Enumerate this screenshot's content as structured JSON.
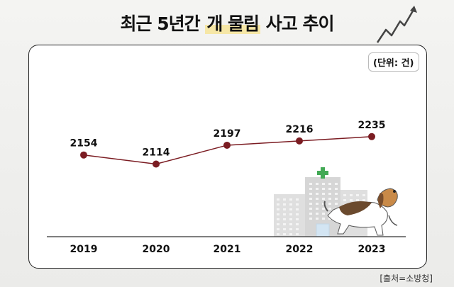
{
  "title_main": "최근 5년간",
  "title_highlight": "개 물림",
  "title_tail": "사고 추이",
  "unit_label": "(단위: 건)",
  "source_label": "[출처=소방청]",
  "colors": {
    "line": "#7b1c22",
    "point": "#7b1c22",
    "axis": "#333333",
    "highlight": "#f6e7a6",
    "cross": "#2ea043"
  },
  "icons": [
    "trend-arrow-icon",
    "hospital-building-icon",
    "beagle-dog-icon"
  ],
  "chart_data": {
    "type": "line",
    "title": "최근 5년간 개 물림 사고 추이",
    "unit": "(단위: 건)",
    "categories": [
      "2019",
      "2020",
      "2021",
      "2022",
      "2023"
    ],
    "values": [
      2154,
      2114,
      2197,
      2216,
      2235
    ],
    "data_labels": [
      "2154",
      "2114",
      "2197",
      "2216",
      "2235"
    ],
    "ylim": [
      1900,
      2400
    ],
    "grid": false,
    "legend": "none"
  }
}
